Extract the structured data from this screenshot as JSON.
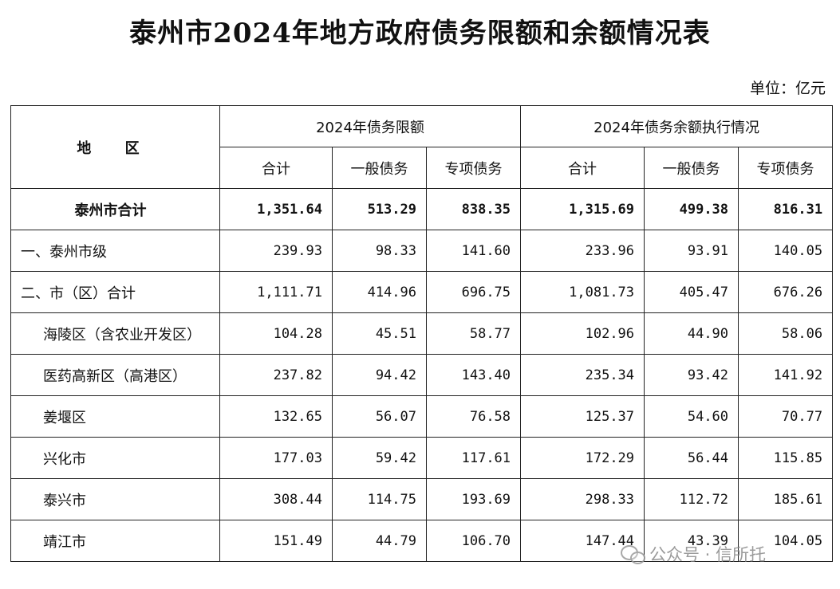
{
  "title": "泰州市2024年地方政府债务限额和余额情况表",
  "unit": "单位：亿元",
  "header": {
    "region": "地 区",
    "group_limit": "2024年债务限额",
    "group_balance": "2024年债务余额执行情况",
    "total": "合计",
    "general": "一般债务",
    "special": "专项债务"
  },
  "rows": [
    {
      "name": "泰州市合计",
      "v": [
        "1,351.64",
        "513.29",
        "838.35",
        "1,315.69",
        "499.38",
        "816.31"
      ]
    },
    {
      "name": "一、泰州市级",
      "v": [
        "239.93",
        "98.33",
        "141.60",
        "233.96",
        "93.91",
        "140.05"
      ]
    },
    {
      "name": "二、市（区）合计",
      "v": [
        "1,111.71",
        "414.96",
        "696.75",
        "1,081.73",
        "405.47",
        "676.26"
      ]
    },
    {
      "name": "海陵区（含农业开发区）",
      "v": [
        "104.28",
        "45.51",
        "58.77",
        "102.96",
        "44.90",
        "58.06"
      ]
    },
    {
      "name": "医药高新区（高港区）",
      "v": [
        "237.82",
        "94.42",
        "143.40",
        "235.34",
        "93.42",
        "141.92"
      ]
    },
    {
      "name": "姜堰区",
      "v": [
        "132.65",
        "56.07",
        "76.58",
        "125.37",
        "54.60",
        "70.77"
      ]
    },
    {
      "name": "兴化市",
      "v": [
        "177.03",
        "59.42",
        "117.61",
        "172.29",
        "56.44",
        "115.85"
      ]
    },
    {
      "name": "泰兴市",
      "v": [
        "308.44",
        "114.75",
        "193.69",
        "298.33",
        "112.72",
        "185.61"
      ]
    },
    {
      "name": "靖江市",
      "v": [
        "151.49",
        "44.79",
        "106.70",
        "147.44",
        "43.39",
        "104.05"
      ]
    }
  ],
  "watermark": {
    "icon": "wechat-icon",
    "text": "公众号 · 信所托"
  }
}
